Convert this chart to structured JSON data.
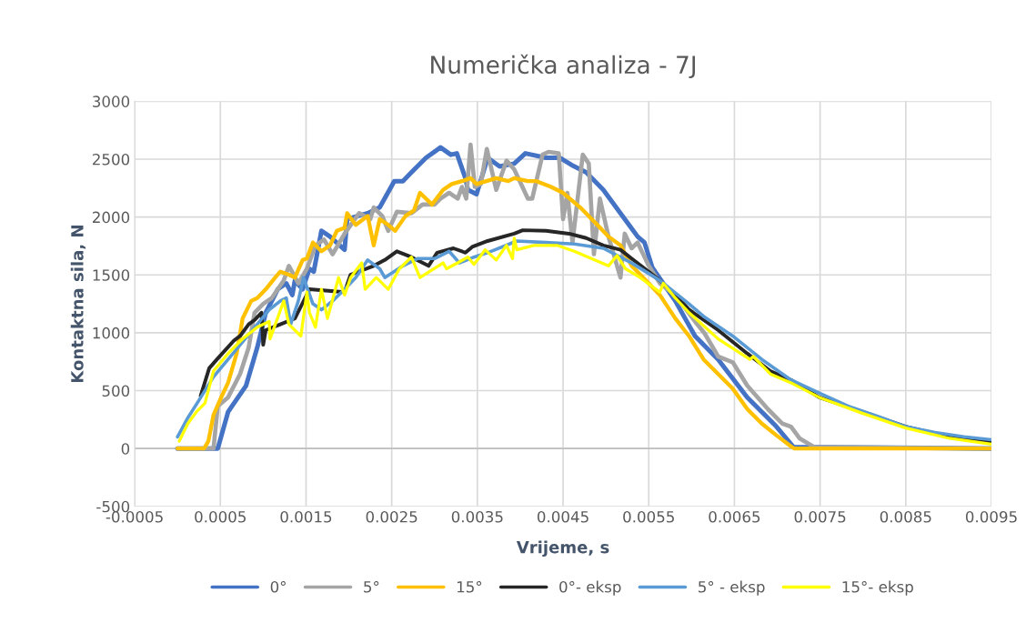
{
  "chart_data": {
    "type": "line",
    "title": "Numerička analiza - 7J",
    "xlabel": "Vrijeme, s",
    "ylabel": "Kontaktna sila, N",
    "xlim": [
      -0.0005,
      0.0095
    ],
    "xticks": [
      -0.0005,
      0.0005,
      0.0015,
      0.0025,
      0.0035,
      0.0045,
      0.0055,
      0.0065,
      0.0075,
      0.0085,
      0.0095
    ],
    "ylim": [
      -500,
      3000
    ],
    "yticks": [
      -500,
      0,
      500,
      1000,
      1500,
      2000,
      2500,
      3000
    ],
    "grid": true,
    "legend": "bottom",
    "marker": "none",
    "line_style": "solid",
    "series": [
      {
        "name": "0°",
        "color": "#4472c4",
        "x": [
          0,
          0.00047,
          0.00059,
          0.0008,
          0.00093,
          0.00103,
          0.00117,
          0.00127,
          0.00134,
          0.00137,
          0.00146,
          0.00154,
          0.00159,
          0.00168,
          0.00178,
          0.00195,
          0.00198,
          0.00222,
          0.00236,
          0.00253,
          0.00263,
          0.00273,
          0.0029,
          0.00307,
          0.00319,
          0.00326,
          0.00336,
          0.00339,
          0.00349,
          0.00362,
          0.00376,
          0.00393,
          0.00406,
          0.0043,
          0.00446,
          0.0046,
          0.00477,
          0.00497,
          0.00517,
          0.00537,
          0.00545,
          0.00554,
          0.00581,
          0.00604,
          0.00631,
          0.00665,
          0.00699,
          0.00719,
          0.0095
        ],
        "values": [
          0,
          0,
          316,
          543,
          871,
          1174,
          1376,
          1427,
          1326,
          1452,
          1376,
          1553,
          1528,
          1881,
          1831,
          1717,
          1982,
          2033,
          2083,
          2310,
          2310,
          2386,
          2512,
          2601,
          2538,
          2550,
          2336,
          2235,
          2197,
          2512,
          2437,
          2462,
          2550,
          2512,
          2512,
          2449,
          2386,
          2235,
          2033,
          1831,
          1780,
          1566,
          1275,
          972,
          770,
          442,
          189,
          13,
          0
        ]
      },
      {
        "name": "5°",
        "color": "#a5a5a5",
        "x": [
          0,
          0.00042,
          0.00047,
          0.00059,
          0.00073,
          0.00083,
          0.0009,
          0.001,
          0.0011,
          0.00124,
          0.0013,
          0.00141,
          0.00151,
          0.00161,
          0.00171,
          0.00181,
          0.00195,
          0.00212,
          0.00225,
          0.00229,
          0.00239,
          0.00246,
          0.00256,
          0.00273,
          0.00286,
          0.003,
          0.00307,
          0.00317,
          0.00327,
          0.00332,
          0.00337,
          0.00342,
          0.00347,
          0.00354,
          0.00361,
          0.00372,
          0.00384,
          0.00393,
          0.00409,
          0.00414,
          0.00426,
          0.00433,
          0.00445,
          0.0045,
          0.00455,
          0.00461,
          0.00473,
          0.0048,
          0.00486,
          0.00493,
          0.00503,
          0.00517,
          0.00522,
          0.0053,
          0.00537,
          0.0055,
          0.00563,
          0.00581,
          0.00604,
          0.00615,
          0.00631,
          0.00648,
          0.00665,
          0.00689,
          0.00706,
          0.00716,
          0.00726,
          0.00743,
          0.0095
        ],
        "values": [
          0,
          0,
          366,
          442,
          644,
          871,
          1174,
          1250,
          1300,
          1452,
          1578,
          1427,
          1553,
          1755,
          1805,
          1679,
          1856,
          2033,
          1982,
          2083,
          2008,
          1881,
          2045,
          2033,
          2108,
          2108,
          2159,
          2209,
          2159,
          2260,
          2159,
          2626,
          2260,
          2285,
          2588,
          2235,
          2487,
          2411,
          2159,
          2159,
          2538,
          2563,
          2550,
          1982,
          2209,
          1780,
          2538,
          2462,
          1679,
          2159,
          1831,
          1477,
          1856,
          1730,
          1780,
          1578,
          1427,
          1326,
          1098,
          997,
          795,
          745,
          543,
          341,
          215,
          189,
          88,
          13,
          0
        ]
      },
      {
        "name": "15°",
        "color": "#ffc000",
        "x": [
          0,
          0.00031,
          0.00036,
          0.00042,
          0.00051,
          0.00059,
          0.00069,
          0.00076,
          0.00086,
          0.00093,
          0.00103,
          0.00114,
          0.0012,
          0.0013,
          0.00137,
          0.00146,
          0.00151,
          0.00158,
          0.00168,
          0.00178,
          0.00186,
          0.00195,
          0.00198,
          0.00208,
          0.00222,
          0.00229,
          0.00236,
          0.00246,
          0.00254,
          0.00266,
          0.00276,
          0.00283,
          0.00297,
          0.0031,
          0.0032,
          0.00332,
          0.00342,
          0.00349,
          0.00372,
          0.00386,
          0.00393,
          0.00409,
          0.00419,
          0.00436,
          0.0045,
          0.0047,
          0.0049,
          0.00503,
          0.00517,
          0.0053,
          0.0055,
          0.00563,
          0.00581,
          0.00597,
          0.00614,
          0.00631,
          0.00648,
          0.00665,
          0.00682,
          0.00699,
          0.00717,
          0.0072,
          0.0095
        ],
        "values": [
          0,
          0,
          63,
          290,
          442,
          568,
          821,
          1124,
          1275,
          1300,
          1376,
          1477,
          1528,
          1502,
          1477,
          1629,
          1641,
          1780,
          1704,
          1755,
          1881,
          1907,
          2033,
          1932,
          2008,
          1755,
          1982,
          1932,
          1881,
          2008,
          2058,
          2209,
          2108,
          2235,
          2285,
          2310,
          2336,
          2285,
          2336,
          2310,
          2336,
          2310,
          2310,
          2260,
          2209,
          2083,
          1932,
          1831,
          1755,
          1578,
          1427,
          1326,
          1124,
          972,
          770,
          644,
          518,
          341,
          215,
          114,
          13,
          0,
          0
        ]
      },
      {
        "name": "0°- eksp",
        "color": "#262626",
        "x": [
          0.00027,
          0.00037,
          0.00046,
          0.00066,
          0.00073,
          0.00083,
          0.0009,
          0.00098,
          0.001,
          0.00103,
          0.0012,
          0.00137,
          0.00154,
          0.00195,
          0.00202,
          0.00229,
          0.00242,
          0.00256,
          0.00273,
          0.00293,
          0.00303,
          0.00322,
          0.00336,
          0.00344,
          0.00362,
          0.00393,
          0.00403,
          0.0043,
          0.00457,
          0.00477,
          0.00497,
          0.00517,
          0.0053,
          0.0055,
          0.00563,
          0.00581,
          0.00597,
          0.00631,
          0.00665,
          0.00692,
          0.00716,
          0.00749,
          0.008,
          0.0085,
          0.00901,
          0.0095
        ],
        "values": [
          454,
          694,
          770,
          934,
          972,
          1073,
          1111,
          1174,
          896,
          1023,
          1073,
          1124,
          1376,
          1351,
          1502,
          1578,
          1629,
          1704,
          1654,
          1578,
          1692,
          1730,
          1692,
          1742,
          1793,
          1856,
          1886,
          1881,
          1856,
          1818,
          1755,
          1717,
          1641,
          1528,
          1452,
          1326,
          1200,
          1023,
          821,
          669,
          593,
          442,
          316,
          189,
          101,
          50
        ]
      },
      {
        "name": "5° - eksp",
        "color": "#5b9bd5",
        "x": [
          0,
          0.00012,
          0.00025,
          0.00042,
          0.00059,
          0.00076,
          0.00093,
          0.00107,
          0.0012,
          0.00127,
          0.00132,
          0.00141,
          0.00147,
          0.00158,
          0.00168,
          0.00181,
          0.00195,
          0.00208,
          0.00222,
          0.00236,
          0.00242,
          0.00263,
          0.0028,
          0.003,
          0.00317,
          0.00329,
          0.00346,
          0.00362,
          0.00396,
          0.0043,
          0.00463,
          0.00497,
          0.0053,
          0.00563,
          0.00597,
          0.00615,
          0.00648,
          0.00682,
          0.00716,
          0.00749,
          0.00783,
          0.00817,
          0.0085,
          0.00884,
          0.00918,
          0.0095
        ],
        "values": [
          101,
          265,
          417,
          619,
          770,
          922,
          1073,
          1199,
          1275,
          1300,
          1073,
          1275,
          1477,
          1250,
          1199,
          1275,
          1376,
          1477,
          1629,
          1553,
          1477,
          1578,
          1641,
          1641,
          1704,
          1603,
          1654,
          1692,
          1793,
          1780,
          1767,
          1730,
          1603,
          1452,
          1250,
          1136,
          972,
          770,
          593,
          480,
          366,
          278,
          189,
          139,
          101,
          76
        ]
      },
      {
        "name": "15°- eksp",
        "color": "#ffff00",
        "x": [
          2e-05,
          0.00012,
          0.00022,
          0.00032,
          0.00042,
          0.00059,
          0.00076,
          0.00093,
          0.00107,
          0.00108,
          0.00124,
          0.0013,
          0.00144,
          0.00151,
          0.00154,
          0.00161,
          0.00168,
          0.00175,
          0.00188,
          0.00195,
          0.00202,
          0.00215,
          0.00219,
          0.00232,
          0.00246,
          0.00259,
          0.00273,
          0.00283,
          0.0031,
          0.00314,
          0.00327,
          0.00339,
          0.00346,
          0.00359,
          0.00372,
          0.00384,
          0.00391,
          0.00393,
          0.00396,
          0.00416,
          0.00443,
          0.00463,
          0.00503,
          0.00513,
          0.00523,
          0.0054,
          0.00563,
          0.00567,
          0.00581,
          0.00597,
          0.00631,
          0.00668,
          0.00672,
          0.00692,
          0.00716,
          0.00749,
          0.008,
          0.0085,
          0.00901,
          0.0095
        ],
        "values": [
          63,
          215,
          316,
          391,
          669,
          821,
          947,
          1048,
          1098,
          947,
          1275,
          1073,
          972,
          1351,
          1174,
          1048,
          1376,
          1124,
          1477,
          1326,
          1477,
          1604,
          1376,
          1477,
          1376,
          1553,
          1654,
          1477,
          1604,
          1553,
          1604,
          1654,
          1591,
          1717,
          1629,
          1755,
          1641,
          1818,
          1717,
          1755,
          1755,
          1704,
          1578,
          1667,
          1553,
          1477,
          1351,
          1427,
          1300,
          1174,
          947,
          770,
          795,
          644,
          568,
          442,
          303,
          177,
          88,
          38
        ]
      }
    ]
  }
}
